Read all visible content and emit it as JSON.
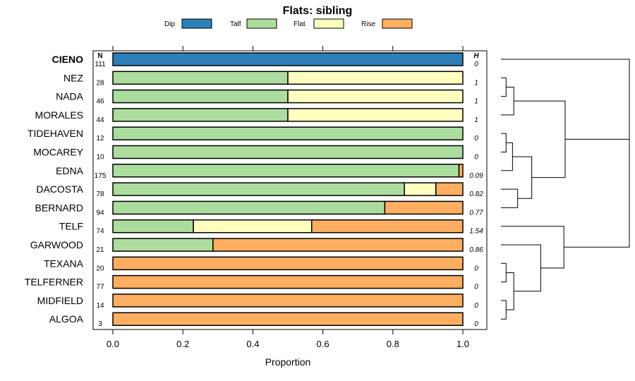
{
  "chart_data": {
    "type": "bar",
    "stacked": true,
    "orientation": "horizontal",
    "title": "Flats: sibling",
    "xlabel": "Proportion",
    "xlim": [
      0,
      1
    ],
    "xticks": [
      "0.0",
      "0.2",
      "0.4",
      "0.6",
      "0.8",
      "1.0"
    ],
    "n_header": "N",
    "h_header": "H",
    "legend": [
      {
        "name": "Dip",
        "color": "#2c7fb8"
      },
      {
        "name": "Talf",
        "color": "#addd9e"
      },
      {
        "name": "Flat",
        "color": "#ffffc0"
      },
      {
        "name": "Rise",
        "color": "#fdae61"
      }
    ],
    "highlight": "CIENO",
    "categories": [
      "CIENO",
      "NEZ",
      "NADA",
      "MORALES",
      "TIDEHAVEN",
      "MOCAREY",
      "EDNA",
      "DACOSTA",
      "BERNARD",
      "TELF",
      "GARWOOD",
      "TEXANA",
      "TELFERNER",
      "MIDFIELD",
      "ALGOA"
    ],
    "n": [
      "111",
      "28",
      "46",
      "44",
      "12",
      "10",
      "175",
      "78",
      "94",
      "74",
      "21",
      "20",
      "77",
      "14",
      "3"
    ],
    "h": [
      "0",
      "1",
      "1",
      "1",
      "0",
      "0",
      "0.09",
      "0.82",
      "0.77",
      "1.54",
      "0.86",
      "0",
      "0",
      "0",
      "0"
    ],
    "series": [
      {
        "name": "Dip",
        "values": [
          1,
          0,
          0,
          0,
          0,
          0,
          0,
          0,
          0,
          0,
          0,
          0,
          0,
          0,
          0
        ]
      },
      {
        "name": "Talf",
        "values": [
          0,
          0.5,
          0.5,
          0.5,
          1,
          1,
          0.989,
          0.833,
          0.777,
          0.23,
          0.286,
          0,
          0,
          0,
          0
        ]
      },
      {
        "name": "Flat",
        "values": [
          0,
          0.5,
          0.5,
          0.5,
          0,
          0,
          0,
          0.09,
          0,
          0.338,
          0,
          0,
          0,
          0,
          0
        ]
      },
      {
        "name": "Rise",
        "values": [
          0,
          0,
          0,
          0,
          0,
          0,
          0.011,
          0.077,
          0.223,
          0.432,
          0.714,
          1,
          1,
          1,
          1
        ]
      }
    ]
  }
}
